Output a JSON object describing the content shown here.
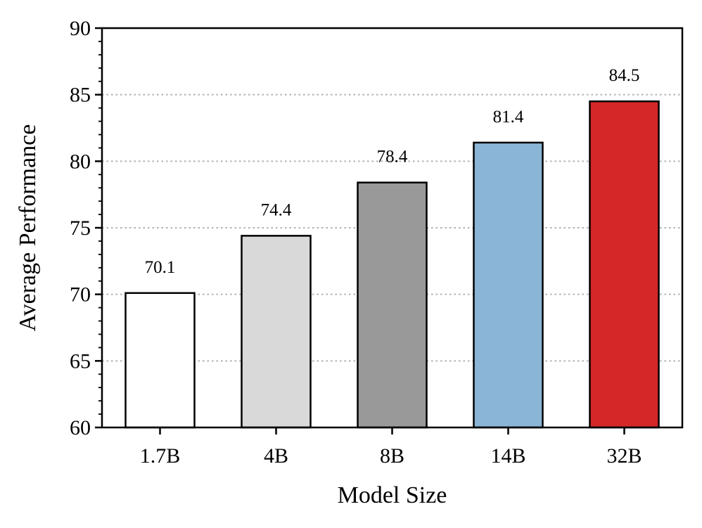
{
  "chart_data": {
    "type": "bar",
    "title": "",
    "xlabel": "Model Size",
    "ylabel": "Average Performance",
    "categories": [
      "1.7B",
      "4B",
      "8B",
      "14B",
      "32B"
    ],
    "values": [
      70.1,
      74.4,
      78.4,
      81.4,
      84.5
    ],
    "value_labels": [
      "70.1",
      "74.4",
      "78.4",
      "81.4",
      "84.5"
    ],
    "bar_colors": [
      "#ffffff",
      "#d9d9d9",
      "#999999",
      "#8ab5d6",
      "#d62728"
    ],
    "bar_edge_color": "#000000",
    "ylim": [
      60,
      90
    ],
    "y_major_ticks": [
      60,
      65,
      70,
      75,
      80,
      85,
      90
    ],
    "y_tick_labels": [
      "60",
      "65",
      "70",
      "75",
      "80",
      "85",
      "90"
    ],
    "y_minor_step": 1,
    "grid": {
      "axis": "y",
      "style": "dotted",
      "color": "#b0b0b0",
      "lines_at": [
        65,
        70,
        75,
        80,
        85
      ]
    },
    "legend": "none"
  }
}
